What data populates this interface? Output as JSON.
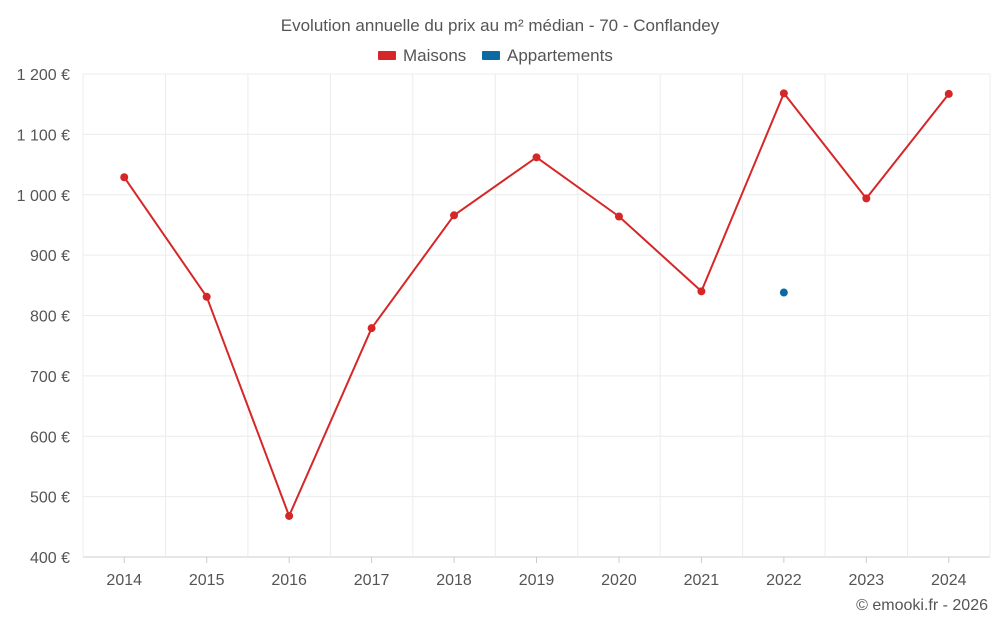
{
  "chart_data": {
    "type": "line",
    "title": "Evolution annuelle du prix au m² médian - 70 - Conflandey",
    "categories": [
      "2014",
      "2015",
      "2016",
      "2017",
      "2018",
      "2019",
      "2020",
      "2021",
      "2022",
      "2023",
      "2024"
    ],
    "series": [
      {
        "name": "Maisons",
        "color": "#d62728",
        "values": [
          1029,
          831,
          468,
          779,
          966,
          1062,
          964,
          840,
          1168,
          994,
          1167
        ]
      },
      {
        "name": "Appartements",
        "color": "#0a6aa1",
        "values": [
          null,
          null,
          null,
          null,
          null,
          null,
          null,
          null,
          838,
          null,
          null
        ]
      }
    ],
    "ylim": [
      400,
      1200
    ],
    "yticks": [
      400,
      500,
      600,
      700,
      800,
      900,
      1000,
      1100,
      1200
    ],
    "ytick_labels": [
      "400 €",
      "500 €",
      "600 €",
      "700 €",
      "800 €",
      "900 €",
      "1 000 €",
      "1 100 €",
      "1 200 €"
    ],
    "grid": true,
    "legend_position": "top-center"
  },
  "credit": "© emooki.fr - 2026"
}
